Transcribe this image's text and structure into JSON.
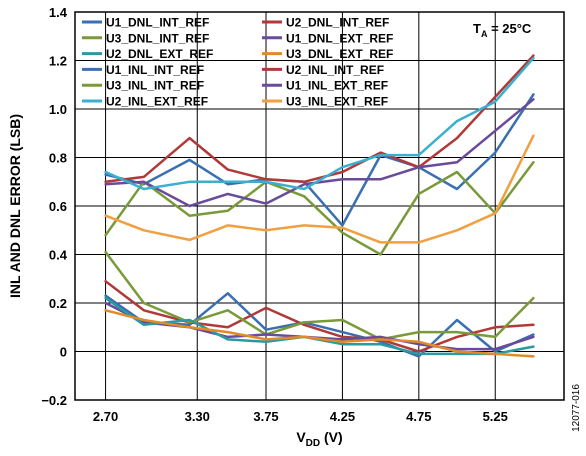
{
  "chart_data": {
    "type": "line",
    "xlabel_main": "V",
    "xlabel_sub": "DD",
    "xlabel_unit": " (V)",
    "ylabel": "INL AND DNL ERROR (LSB)",
    "annotation_main": "T",
    "annotation_sub": "A",
    "annotation_rest": " = 25°C",
    "figure_id": "12077-016",
    "xlim": [
      2.5,
      5.7
    ],
    "ylim": [
      -0.2,
      1.4
    ],
    "x_ticks": [
      2.7,
      3.3,
      3.75,
      4.25,
      4.75,
      5.25
    ],
    "x_tick_labels": [
      "2.70",
      "3.30",
      "3.75",
      "4.25",
      "4.75",
      "5.25"
    ],
    "y_ticks": [
      -0.2,
      0,
      0.2,
      0.4,
      0.6,
      0.8,
      1.0,
      1.2,
      1.4
    ],
    "y_tick_labels": [
      "−0.2",
      "0",
      "0.2",
      "0.4",
      "0.6",
      "0.8",
      "1.0",
      "1.2",
      "1.4"
    ],
    "grid": true,
    "legend_position": "top-left",
    "x": [
      2.7,
      2.95,
      3.25,
      3.5,
      3.75,
      4.0,
      4.25,
      4.5,
      4.75,
      5.0,
      5.25,
      5.5
    ],
    "series": [
      {
        "name": "U1_DNL_INT_REF",
        "color": "#3a6fb0",
        "values": [
          0.23,
          0.12,
          0.11,
          0.24,
          0.09,
          0.12,
          0.08,
          0.04,
          -0.02,
          0.13,
          0.0,
          0.07
        ]
      },
      {
        "name": "U2_DNL_INT_REF",
        "color": "#b03a3a",
        "values": [
          0.29,
          0.17,
          0.12,
          0.1,
          0.18,
          0.11,
          0.06,
          0.05,
          0.0,
          0.06,
          0.1,
          0.11
        ]
      },
      {
        "name": "U3_DNL_INT_REF",
        "color": "#7a9a3a",
        "values": [
          0.41,
          0.2,
          0.12,
          0.17,
          0.07,
          0.12,
          0.13,
          0.05,
          0.08,
          0.08,
          0.06,
          0.22
        ]
      },
      {
        "name": "U1_DNL_EXT_REF",
        "color": "#6a4a9a",
        "values": [
          0.2,
          0.12,
          0.1,
          0.06,
          0.07,
          0.06,
          0.05,
          0.06,
          0.03,
          0.01,
          0.01,
          0.06
        ]
      },
      {
        "name": "U2_DNL_EXT_REF",
        "color": "#2a9aa0",
        "values": [
          0.22,
          0.11,
          0.13,
          0.05,
          0.04,
          0.06,
          0.03,
          0.03,
          -0.01,
          -0.01,
          -0.01,
          0.02
        ]
      },
      {
        "name": "U3_DNL_EXT_REF",
        "color": "#e08a2a",
        "values": [
          0.17,
          0.13,
          0.1,
          0.08,
          0.05,
          0.06,
          0.04,
          0.05,
          0.04,
          0.0,
          -0.01,
          -0.02
        ]
      },
      {
        "name": "U1_INL_INT_REF",
        "color": "#3a6fb0",
        "values": [
          0.73,
          0.69,
          0.79,
          0.69,
          0.71,
          0.7,
          0.52,
          0.81,
          0.76,
          0.67,
          0.82,
          1.06
        ]
      },
      {
        "name": "U2_INL_INT_REF",
        "color": "#b03a3a",
        "values": [
          0.7,
          0.72,
          0.88,
          0.75,
          0.71,
          0.7,
          0.74,
          0.82,
          0.76,
          0.88,
          1.05,
          1.22
        ]
      },
      {
        "name": "U3_INL_INT_REF",
        "color": "#7a9a3a",
        "values": [
          0.48,
          0.7,
          0.56,
          0.58,
          0.7,
          0.64,
          0.49,
          0.4,
          0.65,
          0.74,
          0.57,
          0.78
        ]
      },
      {
        "name": "U1_INL_EXT_REF",
        "color": "#6a4a9a",
        "values": [
          0.69,
          0.7,
          0.6,
          0.65,
          0.61,
          0.69,
          0.71,
          0.71,
          0.76,
          0.78,
          0.91,
          1.04
        ]
      },
      {
        "name": "U2_INL_EXT_REF",
        "color": "#3ab0d0",
        "values": [
          0.74,
          0.67,
          0.7,
          0.7,
          0.7,
          0.67,
          0.76,
          0.81,
          0.81,
          0.95,
          1.03,
          1.21
        ]
      },
      {
        "name": "U3_INL_EXT_REF",
        "color": "#f0a040",
        "values": [
          0.56,
          0.5,
          0.46,
          0.52,
          0.5,
          0.52,
          0.51,
          0.45,
          0.45,
          0.5,
          0.57,
          0.89
        ]
      }
    ]
  }
}
